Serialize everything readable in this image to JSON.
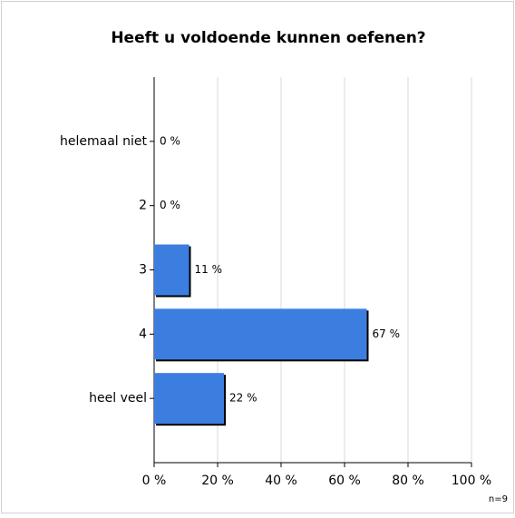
{
  "chart_data": {
    "type": "barh",
    "title": "Heeft u voldoende kunnen oefenen?",
    "categories": [
      "helemaal niet",
      "2",
      "3",
      "4",
      "heel veel"
    ],
    "values": [
      0,
      0,
      11,
      67,
      22
    ],
    "value_labels": [
      "0 %",
      "0 %",
      "11 %",
      "67 %",
      "22 %"
    ],
    "color": "#3c7ee0",
    "xlim": [
      0,
      100
    ],
    "xticks": [
      {
        "value": 0,
        "label": "0 %"
      },
      {
        "value": 20,
        "label": "20 %"
      },
      {
        "value": 40,
        "label": "40 %"
      },
      {
        "value": 60,
        "label": "60 %"
      },
      {
        "value": 80,
        "label": "80 %"
      },
      {
        "value": 100,
        "label": "100 %"
      }
    ],
    "grid": true,
    "annotation": "n=9"
  }
}
